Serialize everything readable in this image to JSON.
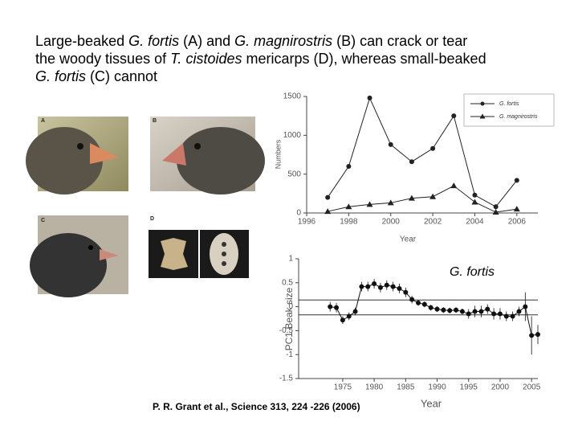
{
  "title": [
    "Large-beaked ",
    "G. fortis",
    " (A) and ",
    "G. magnirostris",
    " (B) can crack or tear",
    "the woody tissues of ",
    "T. cistoides",
    " mericarps (D), whereas small-beaked",
    "G. fortis",
    " (C) cannot"
  ],
  "photo_labels": [
    "A",
    "B",
    "C",
    "D"
  ],
  "citation": "P. R.  Grant et al.,  Science  313, 224 -226 (2006)",
  "chart_data": [
    {
      "type": "line",
      "x_label": "Year",
      "y_label": "Numbers",
      "legend": "upper right",
      "x": [
        1997,
        1998,
        1999,
        2000,
        2001,
        2002,
        2003,
        2004,
        2005,
        2006
      ],
      "series": [
        {
          "name": "G. fortis",
          "color": "#222222",
          "marker": "circle",
          "values": [
            200,
            600,
            1480,
            880,
            660,
            830,
            1250,
            230,
            80,
            420
          ]
        },
        {
          "name": "G. magnirostris",
          "color": "#222222",
          "marker": "triangle",
          "values": [
            20,
            80,
            110,
            130,
            190,
            210,
            350,
            140,
            10,
            50
          ]
        }
      ],
      "xlim": [
        1996,
        2007
      ],
      "xticks": [
        1996,
        1998,
        2000,
        2002,
        2004,
        2006
      ],
      "ylim": [
        0,
        1500
      ],
      "yticks": [
        0,
        500,
        1000,
        1500
      ]
    },
    {
      "type": "line",
      "x_label": "Year",
      "y_label": "PC1  Beak size",
      "annotation": "G. fortis",
      "x": [
        1973,
        1974,
        1975,
        1976,
        1977,
        1978,
        1979,
        1980,
        1981,
        1982,
        1983,
        1984,
        1985,
        1986,
        1987,
        1988,
        1989,
        1990,
        1991,
        1992,
        1993,
        1994,
        1995,
        1996,
        1997,
        1998,
        1999,
        2000,
        2001,
        2002,
        2003,
        2004,
        2005,
        2006
      ],
      "series": [
        {
          "name": null,
          "color": "#111111",
          "marker": "circle",
          "values": [
            0.0,
            -0.02,
            -0.28,
            -0.2,
            -0.1,
            0.42,
            0.42,
            0.48,
            0.4,
            0.45,
            0.42,
            0.38,
            0.3,
            0.15,
            0.08,
            0.05,
            -0.02,
            -0.05,
            -0.07,
            -0.08,
            -0.07,
            -0.1,
            -0.15,
            -0.1,
            -0.1,
            -0.05,
            -0.15,
            -0.15,
            -0.2,
            -0.2,
            -0.1,
            0.0,
            -0.6,
            -0.58
          ],
          "errors": [
            0.1,
            0.1,
            0.08,
            0.08,
            0.08,
            0.1,
            0.1,
            0.1,
            0.1,
            0.1,
            0.1,
            0.1,
            0.1,
            0.08,
            0.06,
            0.06,
            0.06,
            0.06,
            0.06,
            0.06,
            0.06,
            0.06,
            0.1,
            0.12,
            0.12,
            0.1,
            0.12,
            0.12,
            0.1,
            0.1,
            0.1,
            0.3,
            0.4,
            0.2
          ]
        }
      ],
      "hlines": [
        0.14,
        -0.17
      ],
      "xlim": [
        1968,
        2006
      ],
      "xticks": [
        1975,
        1980,
        1985,
        1990,
        1995,
        2000,
        2005
      ],
      "ylim": [
        -1.5,
        1
      ],
      "yticks": [
        -1.5,
        -1,
        -0.5,
        0,
        0.5,
        1
      ]
    }
  ]
}
